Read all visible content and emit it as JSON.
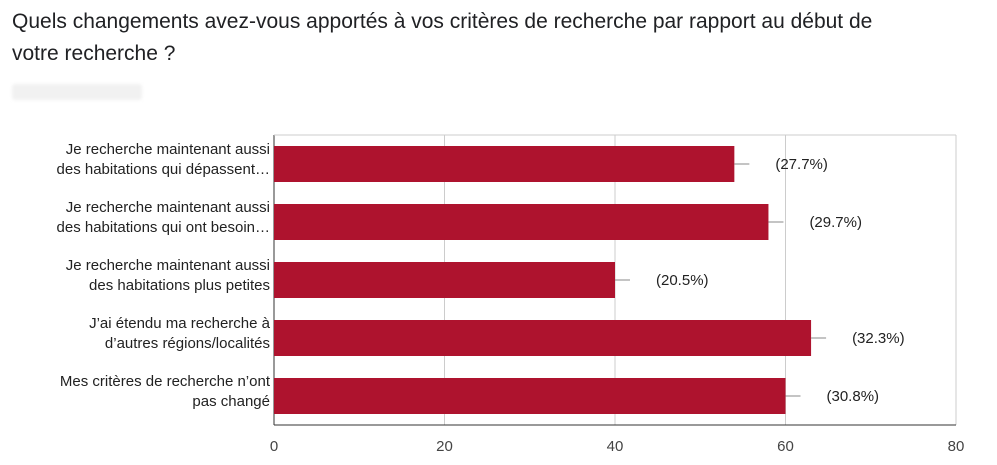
{
  "header": {
    "title_line1": "Quels changements avez-vous apportés à vos critères de recherche par rapport au début de",
    "title_line2": "votre recherche ?"
  },
  "chart_data": {
    "type": "bar",
    "orientation": "horizontal",
    "categories": [
      [
        "Je recherche maintenant aussi",
        "des habitations qui dépassent…"
      ],
      [
        "Je recherche maintenant aussi",
        "des habitations qui ont besoin…"
      ],
      [
        "Je recherche maintenant aussi",
        "des habitations plus petites"
      ],
      [
        "J’ai étendu ma recherche à",
        "d’autres régions/localités"
      ],
      [
        "Mes critères de recherche n’ont",
        "pas changé"
      ]
    ],
    "values": [
      54,
      58,
      40,
      63,
      60
    ],
    "value_labels": [
      "(27.7%)",
      "(29.7%)",
      "(20.5%)",
      "(32.3%)",
      "(30.8%)"
    ],
    "xlim": [
      0,
      80
    ],
    "xticks": [
      0,
      20,
      40,
      60,
      80
    ],
    "grid": true,
    "bar_color": "#ae132e"
  }
}
